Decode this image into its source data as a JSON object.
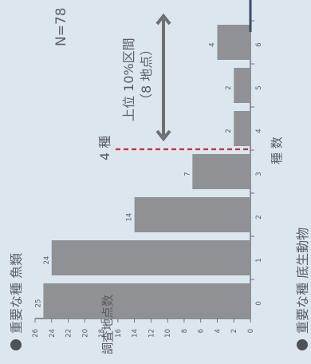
{
  "chart_data": {
    "type": "bar",
    "orientation": "rotated-90-clockwise",
    "categories": [
      "0",
      "1",
      "2",
      "3",
      "4",
      "5",
      "6"
    ],
    "values": [
      25,
      24,
      14,
      7,
      2,
      2,
      4
    ],
    "ylim": [
      0,
      26
    ],
    "yticks": [
      0,
      2,
      4,
      6,
      8,
      10,
      12,
      14,
      16,
      18,
      20,
      22,
      24,
      26
    ],
    "xlabel": "種 数",
    "ylabel": "調査地点数",
    "title_top": "重要な種 魚類",
    "title_bottom": "重要な種 底生動物",
    "n_label": "N=78",
    "threshold_label": "4 種",
    "range_label_line1": "上位 10%区間",
    "range_label_line2": "（8 地点）",
    "colors": {
      "background": "#dce6ef",
      "bar": "#8f9194",
      "axis": "#6e7276",
      "text": "#5a5e63",
      "threshold": "#d9262a",
      "arrow": "#6e7074",
      "marker": "#4f5357",
      "right_edge": "#3a4a66"
    }
  }
}
